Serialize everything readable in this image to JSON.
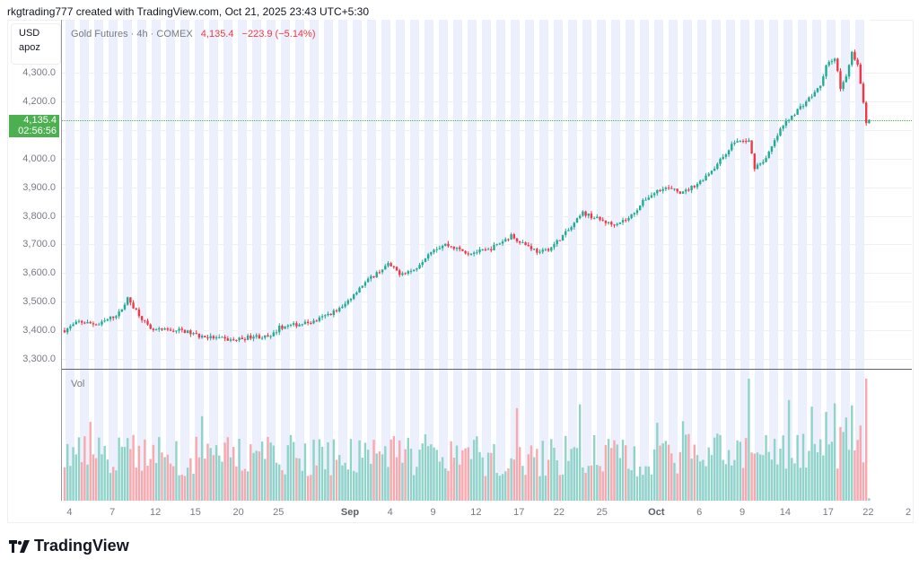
{
  "credit": "rkgtrading777 created with TradingView.com, Oct 21, 2025 23:43 UTC+5:30",
  "legend": {
    "symbol": "Gold Futures · 4h · COMEX",
    "last": "4,135.4",
    "change": "−223.9 (−5.14%)"
  },
  "unit": {
    "currency": "USD",
    "label": "apoz"
  },
  "price_label": {
    "price": "4,135.4",
    "countdown": "02:56:56"
  },
  "volume_label": "Vol",
  "logo": "TradingView",
  "colors": {
    "up": "#22ab94",
    "down": "#f23645",
    "vol_up": "#8fd3c9",
    "vol_down": "#f7a9ae",
    "last": "#4caf50"
  },
  "chart_data": {
    "type": "candlestick",
    "title": "Gold Futures · 4h · COMEX",
    "ylim": [
      3265,
      4395
    ],
    "yticks": [
      "4,300.0",
      "4,200.0",
      "4,100.0",
      "4,000.0",
      "3,900.0",
      "3,800.0",
      "3,700.0",
      "3,600.0",
      "3,500.0",
      "3,400.0",
      "3,300.0"
    ],
    "ytick_values": [
      4300,
      4200,
      4100,
      4000,
      3900,
      3800,
      3700,
      3600,
      3500,
      3400,
      3300
    ],
    "xticks": [
      {
        "label": "4",
        "bar": 2
      },
      {
        "label": "7",
        "bar": 17
      },
      {
        "label": "12",
        "bar": 32
      },
      {
        "label": "15",
        "bar": 46
      },
      {
        "label": "20",
        "bar": 61
      },
      {
        "label": "25",
        "bar": 75
      },
      {
        "label": "Sep",
        "bar": 100,
        "bold": true
      },
      {
        "label": "4",
        "bar": 114
      },
      {
        "label": "9",
        "bar": 129
      },
      {
        "label": "12",
        "bar": 144
      },
      {
        "label": "17",
        "bar": 159
      },
      {
        "label": "22",
        "bar": 173
      },
      {
        "label": "25",
        "bar": 188
      },
      {
        "label": "Oct",
        "bar": 207,
        "bold": true
      },
      {
        "label": "6",
        "bar": 222
      },
      {
        "label": "9",
        "bar": 237
      },
      {
        "label": "14",
        "bar": 252
      },
      {
        "label": "17",
        "bar": 267
      },
      {
        "label": "22",
        "bar": 281
      },
      {
        "label": "2",
        "bar": 295
      }
    ],
    "bar_count": 282,
    "last_price": 4135.4,
    "close_anchors": [
      [
        0,
        3400
      ],
      [
        5,
        3430
      ],
      [
        12,
        3420
      ],
      [
        19,
        3460
      ],
      [
        22,
        3510
      ],
      [
        25,
        3470
      ],
      [
        30,
        3400
      ],
      [
        41,
        3400
      ],
      [
        47,
        3380
      ],
      [
        59,
        3365
      ],
      [
        66,
        3380
      ],
      [
        72,
        3375
      ],
      [
        75,
        3410
      ],
      [
        87,
        3430
      ],
      [
        97,
        3480
      ],
      [
        103,
        3550
      ],
      [
        109,
        3600
      ],
      [
        113,
        3630
      ],
      [
        117,
        3600
      ],
      [
        122,
        3610
      ],
      [
        128,
        3680
      ],
      [
        133,
        3700
      ],
      [
        141,
        3670
      ],
      [
        148,
        3680
      ],
      [
        156,
        3730
      ],
      [
        166,
        3670
      ],
      [
        170,
        3690
      ],
      [
        177,
        3760
      ],
      [
        181,
        3810
      ],
      [
        191,
        3770
      ],
      [
        197,
        3790
      ],
      [
        203,
        3860
      ],
      [
        209,
        3900
      ],
      [
        216,
        3880
      ],
      [
        222,
        3920
      ],
      [
        228,
        3980
      ],
      [
        234,
        4060
      ],
      [
        239,
        4060
      ],
      [
        241,
        3970
      ],
      [
        245,
        4000
      ],
      [
        250,
        4100
      ],
      [
        253,
        4140
      ],
      [
        259,
        4200
      ],
      [
        264,
        4250
      ],
      [
        266,
        4330
      ],
      [
        269,
        4350
      ],
      [
        271,
        4250
      ],
      [
        273,
        4280
      ],
      [
        275,
        4370
      ],
      [
        277,
        4330
      ],
      [
        279,
        4200
      ],
      [
        280,
        4120
      ],
      [
        281,
        4135
      ]
    ]
  }
}
